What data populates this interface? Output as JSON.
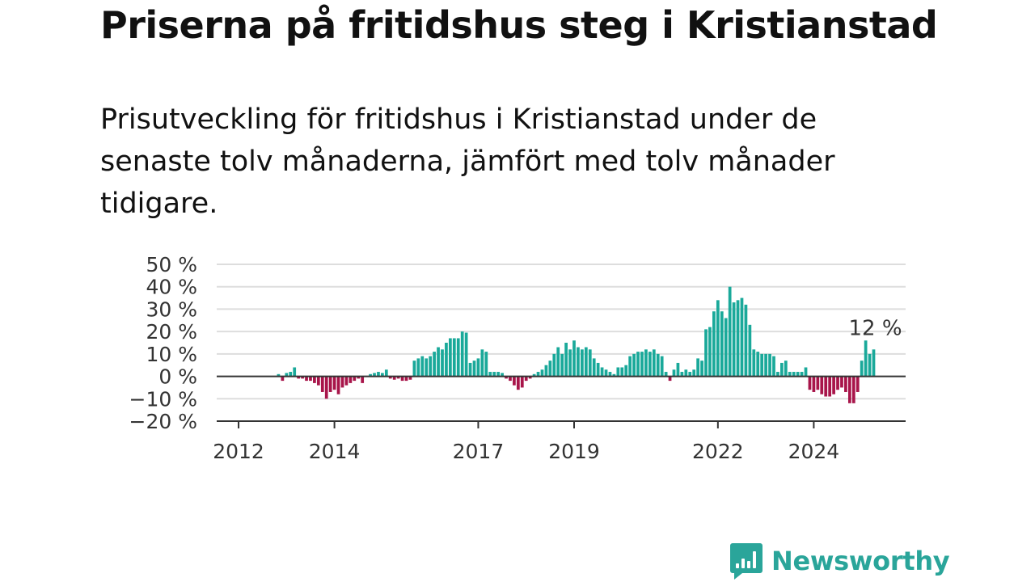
{
  "title": "Priserna på fritidshus steg i Kristianstad",
  "subtitle": "Prisutveckling för fritidshus i Kristianstad under de senaste tolv månaderna, jämfört med tolv månader tidigare.",
  "brand": {
    "name": "Newsworthy",
    "icon": "newsworthy-logo-icon",
    "color": "#2aa59a"
  },
  "colors": {
    "positive": "#1aa99a",
    "negative": "#a8154a",
    "grid": "#dddddd",
    "zero_line": "#333333"
  },
  "chart_data": {
    "type": "bar",
    "title": "",
    "xlabel": "",
    "ylabel": "",
    "ylim": [
      -20,
      50
    ],
    "y_ticks": [
      {
        "value": 50,
        "label": "50 %"
      },
      {
        "value": 40,
        "label": "40 %"
      },
      {
        "value": 30,
        "label": "30 %"
      },
      {
        "value": 20,
        "label": "20 %"
      },
      {
        "value": 10,
        "label": "10 %"
      },
      {
        "value": 0,
        "label": "0 %"
      },
      {
        "value": -10,
        "label": "−10 %"
      },
      {
        "value": -20,
        "label": "−20 %"
      }
    ],
    "x_ticks": [
      "2012",
      "2014",
      "2017",
      "2019",
      "2022",
      "2024"
    ],
    "grid": true,
    "start": "2011-07",
    "frequency": "monthly",
    "values": [
      0,
      0,
      0,
      0,
      0,
      0,
      0,
      0,
      0,
      0,
      0,
      0,
      0,
      0,
      0,
      0,
      1,
      -2,
      1.5,
      2,
      4,
      -1,
      -1,
      -2,
      -2,
      -3,
      -4,
      -7,
      -10,
      -7,
      -6,
      -8,
      -5,
      -4,
      -3,
      -2,
      -1,
      -3,
      0,
      1,
      1.5,
      2,
      1.5,
      3,
      -1,
      -1.5,
      -1,
      -2,
      -2,
      -1.5,
      7,
      8,
      9,
      8,
      9,
      11,
      13,
      12,
      15,
      17,
      17,
      17,
      20,
      19.5,
      6,
      7,
      8,
      12,
      11,
      2,
      2,
      2,
      1.5,
      -1,
      -2,
      -4,
      -6,
      -5,
      -2,
      -1,
      1,
      2,
      3,
      5,
      7,
      10,
      13,
      10,
      15,
      12,
      16,
      13,
      12,
      13,
      12,
      8,
      6,
      4,
      3,
      2,
      1,
      4,
      4,
      5,
      9,
      10,
      11,
      11,
      12,
      11,
      12,
      10,
      9,
      2,
      -2,
      3,
      6,
      2,
      3,
      2,
      3,
      8,
      7,
      21,
      22,
      29,
      34,
      29,
      26,
      40,
      33,
      34,
      35,
      32,
      23,
      12,
      11,
      10,
      10,
      10,
      9,
      2,
      6,
      7,
      2,
      2,
      2,
      2,
      4,
      -6,
      -7,
      -6,
      -8,
      -9,
      -9,
      -8,
      -6,
      -5,
      -7,
      -12,
      -12,
      -7,
      7,
      16,
      10,
      12
    ],
    "annotations": [
      {
        "text": "12 %",
        "target": "last"
      }
    ]
  }
}
